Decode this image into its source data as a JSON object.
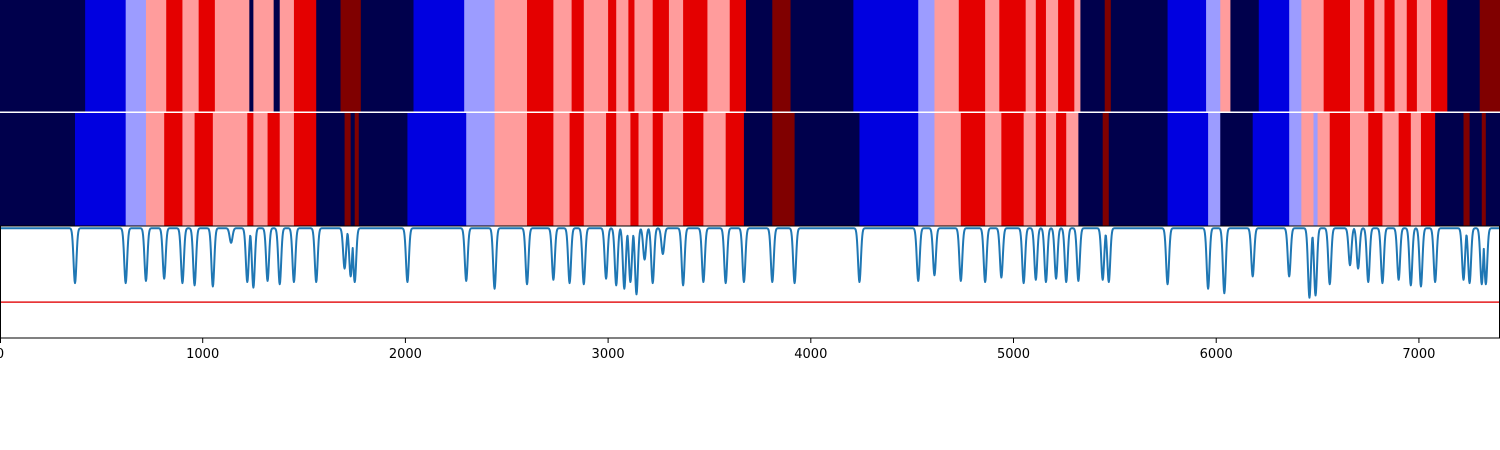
{
  "chart_data": [
    {
      "type": "heatmap",
      "title": "",
      "xlim": [
        0,
        7400
      ],
      "colors": [
        "#00004c",
        "#0000e0",
        "#9c9cff",
        "#ff9c9c",
        "#e40000",
        "#800000"
      ],
      "segments": [
        [
          0,
          420,
          0
        ],
        [
          420,
          620,
          1
        ],
        [
          620,
          720,
          2
        ],
        [
          720,
          820,
          3
        ],
        [
          820,
          900,
          4
        ],
        [
          900,
          980,
          3
        ],
        [
          980,
          1060,
          4
        ],
        [
          1060,
          1230,
          3
        ],
        [
          1230,
          1250,
          0
        ],
        [
          1250,
          1350,
          3
        ],
        [
          1350,
          1380,
          0
        ],
        [
          1380,
          1450,
          3
        ],
        [
          1450,
          1560,
          4
        ],
        [
          1560,
          1680,
          0
        ],
        [
          1680,
          1780,
          5
        ],
        [
          1780,
          2040,
          0
        ],
        [
          2040,
          2290,
          1
        ],
        [
          2290,
          2440,
          2
        ],
        [
          2440,
          2600,
          3
        ],
        [
          2600,
          2730,
          4
        ],
        [
          2730,
          2820,
          3
        ],
        [
          2820,
          2880,
          4
        ],
        [
          2880,
          3000,
          3
        ],
        [
          3000,
          3040,
          4
        ],
        [
          3040,
          3100,
          3
        ],
        [
          3100,
          3130,
          4
        ],
        [
          3130,
          3220,
          3
        ],
        [
          3220,
          3300,
          4
        ],
        [
          3300,
          3370,
          3
        ],
        [
          3370,
          3490,
          4
        ],
        [
          3490,
          3600,
          3
        ],
        [
          3600,
          3680,
          4
        ],
        [
          3680,
          3810,
          0
        ],
        [
          3810,
          3900,
          5
        ],
        [
          3900,
          4210,
          0
        ],
        [
          4210,
          4530,
          1
        ],
        [
          4530,
          4610,
          2
        ],
        [
          4610,
          4730,
          3
        ],
        [
          4730,
          4860,
          4
        ],
        [
          4860,
          4930,
          3
        ],
        [
          4930,
          5060,
          4
        ],
        [
          5060,
          5110,
          3
        ],
        [
          5110,
          5160,
          4
        ],
        [
          5160,
          5220,
          3
        ],
        [
          5220,
          5300,
          4
        ],
        [
          5300,
          5330,
          3
        ],
        [
          5330,
          5450,
          0
        ],
        [
          5450,
          5480,
          5
        ],
        [
          5480,
          5760,
          0
        ],
        [
          5760,
          5950,
          1
        ],
        [
          5950,
          6020,
          2
        ],
        [
          6020,
          6070,
          3
        ],
        [
          6070,
          6210,
          0
        ],
        [
          6210,
          6360,
          1
        ],
        [
          6360,
          6420,
          2
        ],
        [
          6420,
          6530,
          3
        ],
        [
          6530,
          6660,
          4
        ],
        [
          6660,
          6730,
          3
        ],
        [
          6730,
          6780,
          4
        ],
        [
          6780,
          6830,
          3
        ],
        [
          6830,
          6880,
          4
        ],
        [
          6880,
          6940,
          3
        ],
        [
          6940,
          6990,
          4
        ],
        [
          6990,
          7060,
          3
        ],
        [
          7060,
          7140,
          4
        ],
        [
          7140,
          7300,
          0
        ],
        [
          7300,
          7400,
          5
        ]
      ]
    },
    {
      "type": "heatmap",
      "title": "",
      "xlim": [
        0,
        7400
      ],
      "colors": [
        "#00004c",
        "#0000e0",
        "#9c9cff",
        "#ff9c9c",
        "#e40000",
        "#800000"
      ],
      "segments": [
        [
          0,
          370,
          0
        ],
        [
          370,
          620,
          1
        ],
        [
          620,
          720,
          2
        ],
        [
          720,
          810,
          3
        ],
        [
          810,
          900,
          4
        ],
        [
          900,
          960,
          3
        ],
        [
          960,
          1050,
          4
        ],
        [
          1050,
          1220,
          3
        ],
        [
          1220,
          1250,
          4
        ],
        [
          1250,
          1320,
          3
        ],
        [
          1320,
          1380,
          4
        ],
        [
          1380,
          1450,
          3
        ],
        [
          1450,
          1560,
          4
        ],
        [
          1560,
          1700,
          0
        ],
        [
          1700,
          1730,
          5
        ],
        [
          1730,
          1750,
          0
        ],
        [
          1750,
          1770,
          5
        ],
        [
          1770,
          2010,
          0
        ],
        [
          2010,
          2300,
          1
        ],
        [
          2300,
          2440,
          2
        ],
        [
          2440,
          2600,
          3
        ],
        [
          2600,
          2730,
          4
        ],
        [
          2730,
          2810,
          3
        ],
        [
          2810,
          2880,
          4
        ],
        [
          2880,
          2990,
          3
        ],
        [
          2990,
          3040,
          4
        ],
        [
          3040,
          3110,
          3
        ],
        [
          3110,
          3150,
          4
        ],
        [
          3150,
          3220,
          3
        ],
        [
          3220,
          3270,
          4
        ],
        [
          3270,
          3370,
          3
        ],
        [
          3370,
          3470,
          4
        ],
        [
          3470,
          3580,
          3
        ],
        [
          3580,
          3670,
          4
        ],
        [
          3670,
          3810,
          0
        ],
        [
          3810,
          3920,
          5
        ],
        [
          3920,
          4240,
          0
        ],
        [
          4240,
          4530,
          1
        ],
        [
          4530,
          4610,
          2
        ],
        [
          4610,
          4740,
          3
        ],
        [
          4740,
          4860,
          4
        ],
        [
          4860,
          4940,
          3
        ],
        [
          4940,
          5050,
          4
        ],
        [
          5050,
          5110,
          3
        ],
        [
          5110,
          5160,
          4
        ],
        [
          5160,
          5210,
          3
        ],
        [
          5210,
          5260,
          4
        ],
        [
          5260,
          5320,
          3
        ],
        [
          5320,
          5440,
          0
        ],
        [
          5440,
          5470,
          5
        ],
        [
          5470,
          5760,
          0
        ],
        [
          5760,
          5960,
          1
        ],
        [
          5960,
          6020,
          2
        ],
        [
          6020,
          6180,
          0
        ],
        [
          6180,
          6360,
          1
        ],
        [
          6360,
          6420,
          2
        ],
        [
          6420,
          6480,
          3
        ],
        [
          6480,
          6500,
          2
        ],
        [
          6500,
          6560,
          3
        ],
        [
          6560,
          6660,
          4
        ],
        [
          6660,
          6750,
          3
        ],
        [
          6750,
          6820,
          4
        ],
        [
          6820,
          6900,
          3
        ],
        [
          6900,
          6960,
          4
        ],
        [
          6960,
          7010,
          3
        ],
        [
          7010,
          7080,
          4
        ],
        [
          7080,
          7220,
          0
        ],
        [
          7220,
          7250,
          5
        ],
        [
          7250,
          7310,
          0
        ],
        [
          7310,
          7330,
          5
        ],
        [
          7330,
          7400,
          0
        ]
      ]
    },
    {
      "type": "line",
      "title": "",
      "xlabel": "",
      "ylabel": "",
      "xlim": [
        0,
        7400
      ],
      "ylim": [
        0,
        1
      ],
      "line_color": "#1f77b4",
      "threshold": 0.32,
      "threshold_color": "#e41a1c",
      "baseline": 0.98,
      "dips": [
        [
          370,
          0.49
        ],
        [
          620,
          0.49
        ],
        [
          720,
          0.51
        ],
        [
          810,
          0.53
        ],
        [
          900,
          0.49
        ],
        [
          960,
          0.47
        ],
        [
          1050,
          0.46
        ],
        [
          1140,
          0.85
        ],
        [
          1220,
          0.5
        ],
        [
          1250,
          0.45
        ],
        [
          1320,
          0.51
        ],
        [
          1380,
          0.48
        ],
        [
          1450,
          0.5
        ],
        [
          1560,
          0.5
        ],
        [
          1700,
          0.62
        ],
        [
          1730,
          0.55
        ],
        [
          1750,
          0.5
        ],
        [
          2010,
          0.5
        ],
        [
          2300,
          0.51
        ],
        [
          2440,
          0.44
        ],
        [
          2600,
          0.48
        ],
        [
          2730,
          0.52
        ],
        [
          2810,
          0.49
        ],
        [
          2880,
          0.48
        ],
        [
          2990,
          0.53
        ],
        [
          3040,
          0.47
        ],
        [
          3080,
          0.44
        ],
        [
          3110,
          0.5
        ],
        [
          3140,
          0.39
        ],
        [
          3180,
          0.7
        ],
        [
          3220,
          0.49
        ],
        [
          3270,
          0.75
        ],
        [
          3370,
          0.47
        ],
        [
          3470,
          0.5
        ],
        [
          3580,
          0.49
        ],
        [
          3670,
          0.5
        ],
        [
          3810,
          0.5
        ],
        [
          3920,
          0.49
        ],
        [
          4240,
          0.5
        ],
        [
          4530,
          0.51
        ],
        [
          4610,
          0.56
        ],
        [
          4740,
          0.51
        ],
        [
          4860,
          0.5
        ],
        [
          4940,
          0.54
        ],
        [
          5050,
          0.49
        ],
        [
          5110,
          0.52
        ],
        [
          5160,
          0.5
        ],
        [
          5210,
          0.53
        ],
        [
          5260,
          0.5
        ],
        [
          5320,
          0.51
        ],
        [
          5440,
          0.52
        ],
        [
          5470,
          0.5
        ],
        [
          5760,
          0.48
        ],
        [
          5960,
          0.44
        ],
        [
          6040,
          0.4
        ],
        [
          6180,
          0.55
        ],
        [
          6360,
          0.55
        ],
        [
          6460,
          0.36
        ],
        [
          6490,
          0.38
        ],
        [
          6560,
          0.48
        ],
        [
          6660,
          0.65
        ],
        [
          6700,
          0.62
        ],
        [
          6750,
          0.5
        ],
        [
          6820,
          0.49
        ],
        [
          6900,
          0.52
        ],
        [
          6960,
          0.47
        ],
        [
          7010,
          0.46
        ],
        [
          7080,
          0.5
        ],
        [
          7220,
          0.52
        ],
        [
          7250,
          0.49
        ],
        [
          7310,
          0.48
        ],
        [
          7330,
          0.48
        ]
      ],
      "xticks": [
        0,
        1000,
        2000,
        3000,
        4000,
        5000,
        6000,
        7000
      ],
      "xtick_labels": [
        "0",
        "1000",
        "2000",
        "3000",
        "4000",
        "5000",
        "6000",
        "7000"
      ]
    }
  ]
}
